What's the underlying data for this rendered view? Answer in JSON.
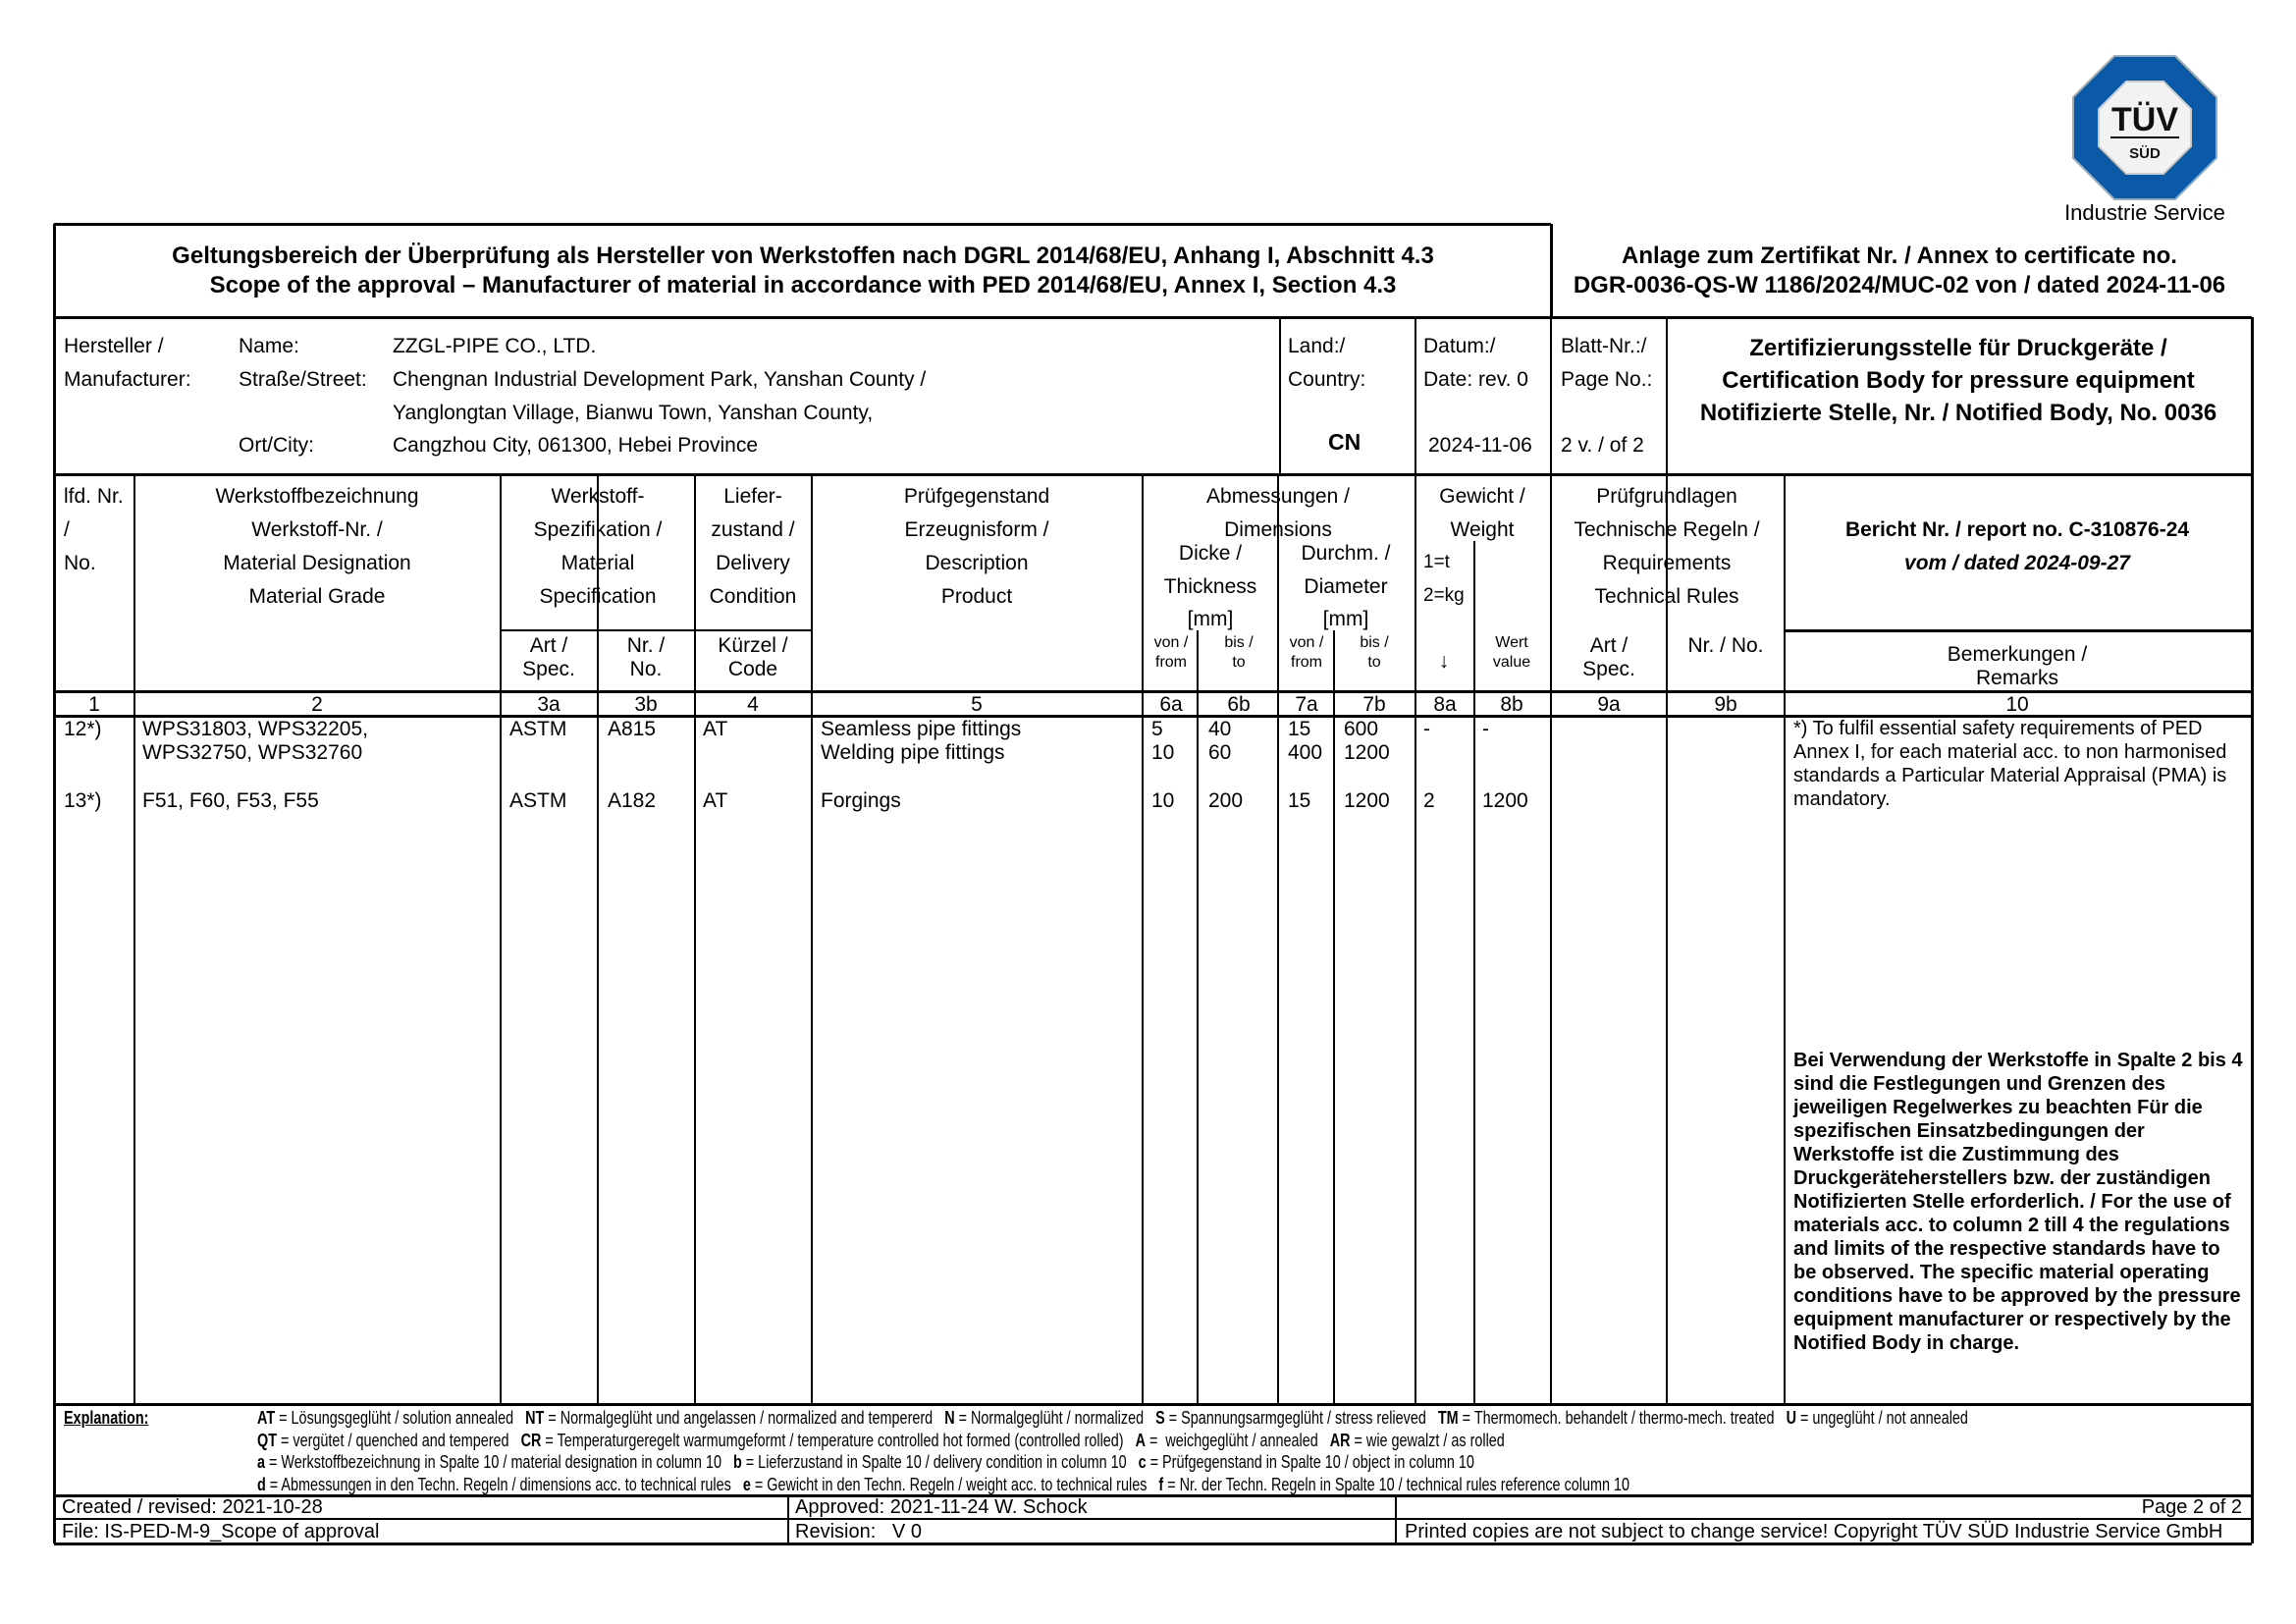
{
  "logo": {
    "brand_top": "TÜV",
    "brand_bottom": "SÜD",
    "subtitle": "Industrie Service",
    "color": "#0a5aa8"
  },
  "title": {
    "line1": "Geltungsbereich der Überprüfung als Hersteller von Werkstoffen nach DGRL 2014/68/EU, Anhang I, Abschnitt 4.3",
    "line2": "Scope of the approval – Manufacturer of material in accordance with PED 2014/68/EU, Annex I, Section 4.3",
    "annex1": "Anlage zum Zertifikat Nr. / Annex to certificate no.",
    "annex2": "DGR-0036-QS-W 1186/2024/MUC-02 von / dated 2024-11-06"
  },
  "manufacturer": {
    "label1": "Hersteller /",
    "label2": "Manufacturer:",
    "name_label": "Name:",
    "street_label": "Straße/Street:",
    "city_label": "Ort/City:",
    "name": "ZZGL-PIPE CO., LTD.",
    "street1": "Chengnan Industrial Development Park, Yanshan County /",
    "street2": "Yanglongtan Village, Bianwu Town, Yanshan County,",
    "city": "Cangzhou City, 061300, Hebei Province",
    "country_label1": "Land:/",
    "country_label2": "Country:",
    "country": "CN",
    "date_label1": "Datum:/",
    "date_label2": "Date: rev. 0",
    "date": "2024-11-06",
    "page_label1": "Blatt-Nr.:/",
    "page_label2": "Page No.:",
    "page": "2 v. / of 2",
    "body1": "Zertifizierungsstelle für Druckgeräte /",
    "body2": "Certification Body for pressure equipment",
    "body3": "Notifizierte Stelle, Nr. / Notified Body, No. 0036"
  },
  "headers": {
    "c1": [
      "lfd. Nr.",
      "/",
      "No."
    ],
    "c2": [
      "Werkstoffbezeichnung",
      "Werkstoff-Nr. /",
      "Material Designation",
      "Material Grade"
    ],
    "c3": [
      "Werkstoff-",
      "Spezifikation /",
      "Material",
      "Specification"
    ],
    "c3a": "Art /",
    "c3a2": "Spec.",
    "c3b": "Nr. /",
    "c3b2": "No.",
    "c4": [
      "Liefer-",
      "zustand /",
      "Delivery",
      "Condition"
    ],
    "c4sub": "Kürzel /",
    "c4sub2": "Code",
    "c5": [
      "Prüfgegenstand",
      "Erzeugnisform /",
      "Description",
      "Product"
    ],
    "c6_7": "Abmessungen /",
    "c6_7b": "Dimensions",
    "c6": [
      "Dicke /",
      "Thickness",
      "[mm]"
    ],
    "c7": [
      "Durchm. /",
      "Diameter",
      "[mm]"
    ],
    "von": "von /",
    "from": "from",
    "bis": "bis /",
    "to": "to",
    "c8": "Gewicht /",
    "c8b": "Weight",
    "c8a1": "1=t",
    "c8a2": "2=kg",
    "c8arrow": "↓",
    "c8w1": "Wert",
    "c8w2": "value",
    "c9": [
      "Prüfgrundlagen",
      "Technische Regeln /",
      "Requirements",
      "Technical Rules"
    ],
    "c9a": "Art /",
    "c9a2": "Spec.",
    "c9b": "Nr. / No.",
    "c10a": "Bericht Nr. / report no. C-310876-24",
    "c10b": "vom / dated 2024-09-27",
    "c10sub1": "Bemerkungen /",
    "c10sub2": "Remarks"
  },
  "column_numbers": [
    "1",
    "2",
    "3a",
    "3b",
    "4",
    "5",
    "6a",
    "6b",
    "7a",
    "7b",
    "8a",
    "8b",
    "9a",
    "9b",
    "10"
  ],
  "rows": [
    {
      "no": "12*)",
      "material": [
        "WPS31803, WPS32205,",
        "WPS32750, WPS32760"
      ],
      "spec": "ASTM",
      "specno": "A815",
      "cond": "AT",
      "product": [
        "Seamless pipe fittings",
        "Welding pipe fittings"
      ],
      "t_from": [
        "5",
        "10"
      ],
      "t_to": [
        "40",
        "60"
      ],
      "d_from": [
        "15",
        "400"
      ],
      "d_to": [
        "600",
        "1200"
      ],
      "w_unit": "-",
      "w_value": "-"
    },
    {
      "no": "13*)",
      "material": [
        "F51, F60, F53, F55"
      ],
      "spec": "ASTM",
      "specno": "A182",
      "cond": "AT",
      "product": [
        "Forgings"
      ],
      "t_from": [
        "10"
      ],
      "t_to": [
        "200"
      ],
      "d_from": [
        "15"
      ],
      "d_to": [
        "1200"
      ],
      "w_unit": "2",
      "w_value": "1200"
    }
  ],
  "remarks": {
    "note": "*) To fulfil essential safety requirements of PED Annex I, for each material acc. to non harmonised standards a Particular Material Appraisal (PMA) is mandatory.",
    "bold": "Bei Verwendung der Werkstoffe in Spalte 2 bis 4 sind die Festlegungen und Grenzen des jeweiligen Regelwerkes zu beachten Für die spezifischen Einsatzbedingungen der Werkstoffe ist die Zustimmung des Druckgeräteherstellers bzw. der zuständigen Notifizierten Stelle erforderlich. / For the use of materials acc. to column 2 till 4 the regulations and limits of the respective standards have to be observed. The specific material operating conditions have to be approved by the pressure equipment manufacturer or respectively by the Notified Body in charge."
  },
  "explanation": {
    "label": "Explanation:",
    "lines": [
      "<b>AT</b> = Lösungsgeglüht / solution annealed &nbsp; <b>NT</b> = Normalgeglüht und angelassen / normalized and tempererd &nbsp; <b>N</b> = Normalgeglüht / normalized &nbsp; <b>S</b> = Spannungsarmgeglüht / stress relieved &nbsp; <b>TM</b> = Thermomech. behandelt / thermo-mech. treated &nbsp; <b>U</b> = ungeglüht / not annealed",
      "<b>QT</b> = vergütet / quenched and tempered &nbsp; <b>CR</b> = Temperaturgeregelt warmumgeformt / temperature controlled hot formed (controlled rolled) &nbsp; <b>A</b> = &nbsp;weichgeglüht / annealed &nbsp; <b>AR</b> = wie gewalzt / as rolled",
      "<b>a</b> = Werkstoffbezeichnung in Spalte 10 / material designation in column 10 &nbsp; <b>b</b> = Lieferzustand in Spalte 10 / delivery condition in column 10 &nbsp; <b>c</b> = Prüfgegenstand in Spalte 10 / object in column 10",
      "<b>d</b> = Abmessungen in den Techn. Regeln / dimensions acc. to technical rules &nbsp; <b>e</b> = Gewicht in den Techn. Regeln / weight acc. to technical rules &nbsp; <b>f</b> = Nr. der Techn. Regeln in Spalte 10 / technical rules reference column 10"
    ]
  },
  "footer": {
    "created": "Created / revised: 2021-10-28",
    "approved": "Approved: 2021-11-24 W. Schock",
    "page": "Page 2 of 2",
    "file": "File: IS-PED-M-9_Scope of approval",
    "revision": "Revision:   V 0",
    "copyright": "Printed copies are not subject to change service! Copyright TÜV SÜD Industrie Service GmbH"
  }
}
